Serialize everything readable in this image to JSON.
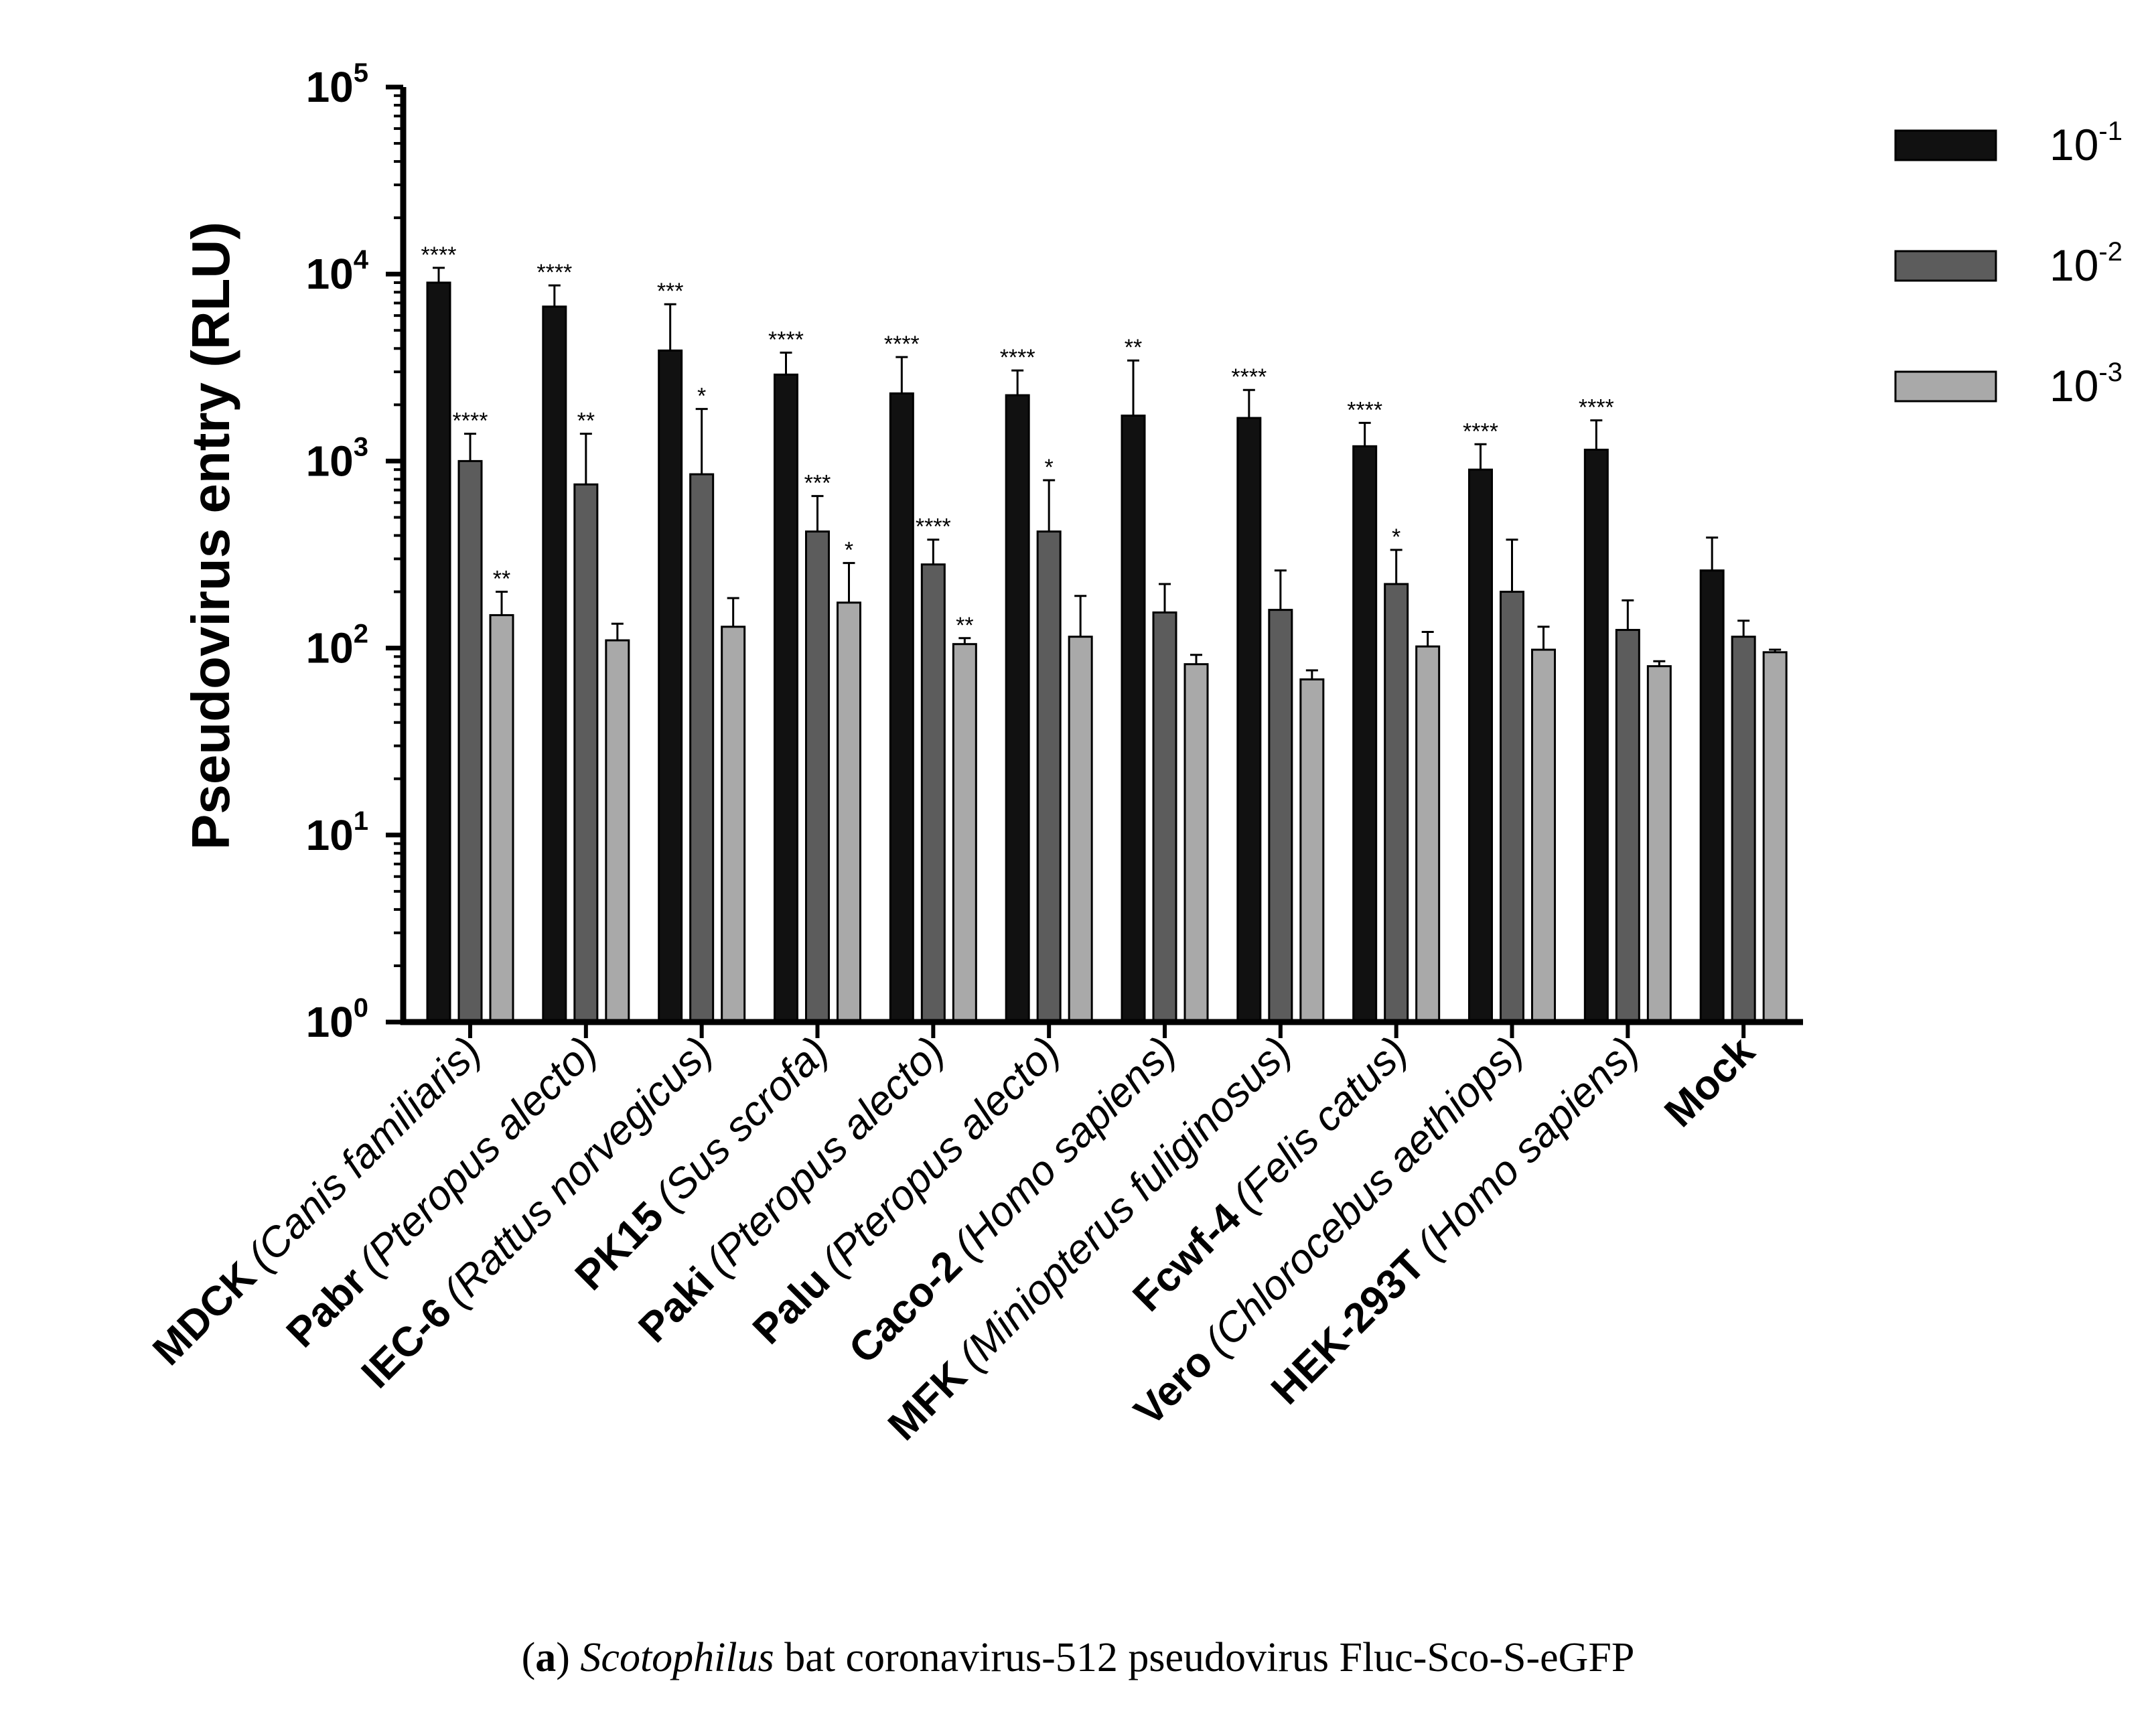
{
  "chart_data": {
    "type": "bar",
    "scale": "log10",
    "ylabel": "Pseudovirus entry (RLU)",
    "ylim": [
      1,
      100000
    ],
    "yticks": [
      {
        "base": "10",
        "exp": "0"
      },
      {
        "base": "10",
        "exp": "1"
      },
      {
        "base": "10",
        "exp": "2"
      },
      {
        "base": "10",
        "exp": "3"
      },
      {
        "base": "10",
        "exp": "4"
      },
      {
        "base": "10",
        "exp": "5"
      }
    ],
    "categories": [
      {
        "name": "MDCK",
        "species": "(Canis familiaris)"
      },
      {
        "name": "Pabr",
        "species": "(Pteropus alecto)"
      },
      {
        "name": "IEC-6",
        "species": "(Rattus norvegicus)"
      },
      {
        "name": "PK15",
        "species": "(Sus scrofa)"
      },
      {
        "name": "Paki",
        "species": "(Pteropus alecto)"
      },
      {
        "name": "Palu",
        "species": "(Pteropus alecto)"
      },
      {
        "name": "Caco-2",
        "species": "(Homo sapiens)"
      },
      {
        "name": "MFK",
        "species": "(Miniopterus fuliginosus)"
      },
      {
        "name": "Fcwf-4",
        "species": "(Felis catus)"
      },
      {
        "name": "Vero",
        "species": "(Chlorocebus aethiops)"
      },
      {
        "name": "HEK-293T",
        "species": "(Homo sapiens)"
      },
      {
        "name": "Mock",
        "species": ""
      }
    ],
    "series": [
      {
        "name": "10-1",
        "label_base": "10",
        "label_exp": "-1",
        "color": "#111111",
        "values": [
          9000,
          6700,
          3900,
          2900,
          2300,
          2250,
          1750,
          1700,
          1200,
          900,
          1150,
          260
        ],
        "errors": [
          1800,
          2000,
          3000,
          900,
          1300,
          800,
          1700,
          700,
          400,
          330,
          500,
          130
        ],
        "significance": [
          "****",
          "****",
          "***",
          "****",
          "****",
          "****",
          "**",
          "****",
          "****",
          "****",
          "****",
          ""
        ]
      },
      {
        "name": "10-2",
        "label_base": "10",
        "label_exp": "-2",
        "color": "#5c5c5c",
        "values": [
          1000,
          750,
          850,
          420,
          280,
          420,
          155,
          160,
          220,
          200,
          125,
          115
        ],
        "errors": [
          400,
          650,
          1050,
          230,
          100,
          370,
          65,
          100,
          115,
          180,
          55,
          25
        ],
        "significance": [
          "****",
          "**",
          "*",
          "***",
          "****",
          "*",
          "",
          "",
          "*",
          "",
          "",
          ""
        ]
      },
      {
        "name": "10-3",
        "label_base": "10",
        "label_exp": "-3",
        "color": "#a9a9a9",
        "values": [
          150,
          110,
          130,
          175,
          105,
          115,
          82,
          68,
          102,
          98,
          80,
          95
        ],
        "errors": [
          50,
          25,
          55,
          110,
          8,
          75,
          10,
          8,
          20,
          32,
          5,
          3
        ],
        "significance": [
          "**",
          "",
          "",
          "*",
          "**",
          "",
          "",
          "",
          "",
          "",
          "",
          ""
        ]
      }
    ]
  },
  "caption": {
    "panel": "a",
    "genus": "Scotophilus",
    "text": "bat coronavirus-512 pseudovirus Fluc-Sco-S-eGFP"
  }
}
